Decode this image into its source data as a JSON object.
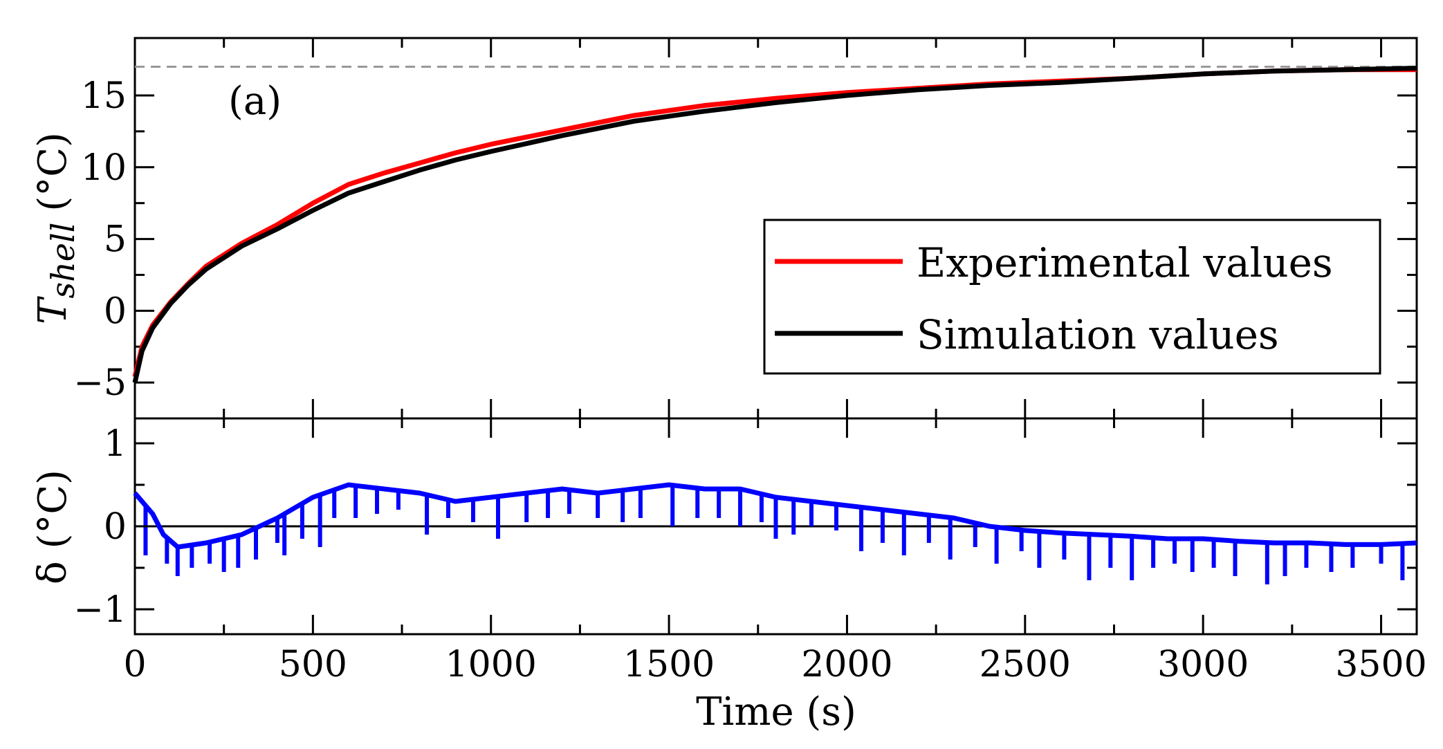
{
  "chart_data": [
    {
      "type": "line",
      "panel_label": "(a)",
      "xlabel": "",
      "ylabel_main": "T",
      "ylabel_sub": "shell",
      "ylabel_unit": "(°C)",
      "xlim": [
        0,
        3600
      ],
      "ylim": [
        -7.5,
        19
      ],
      "yticks": [
        -5,
        0,
        5,
        10,
        15
      ],
      "ytick_labels": [
        "−5",
        "0",
        "5",
        "10",
        "15"
      ],
      "reference_line": {
        "y": 17,
        "style": "dashed",
        "color": "#999999"
      },
      "legend": {
        "placement": "center-right"
      },
      "series": [
        {
          "name": "Experimental values",
          "color": "#ff0000",
          "x": [
            0,
            20,
            50,
            100,
            150,
            200,
            300,
            400,
            500,
            600,
            700,
            800,
            900,
            1000,
            1200,
            1400,
            1600,
            1800,
            2000,
            2200,
            2400,
            2600,
            2800,
            3000,
            3200,
            3400,
            3600
          ],
          "y": [
            -4.6,
            -2.5,
            -1.0,
            0.6,
            1.9,
            3.1,
            4.7,
            6.0,
            7.5,
            8.8,
            9.6,
            10.3,
            11.0,
            11.6,
            12.6,
            13.6,
            14.3,
            14.8,
            15.2,
            15.5,
            15.8,
            16.0,
            16.2,
            16.5,
            16.7,
            16.8,
            16.8
          ]
        },
        {
          "name": "Simulation values",
          "color": "#000000",
          "x": [
            0,
            20,
            50,
            100,
            150,
            200,
            300,
            400,
            500,
            600,
            700,
            800,
            900,
            1000,
            1200,
            1400,
            1600,
            1800,
            2000,
            2200,
            2400,
            2600,
            2800,
            3000,
            3200,
            3400,
            3600
          ],
          "y": [
            -5.0,
            -2.8,
            -1.2,
            0.5,
            1.8,
            2.9,
            4.5,
            5.7,
            7.0,
            8.2,
            9.0,
            9.8,
            10.5,
            11.1,
            12.2,
            13.2,
            13.9,
            14.5,
            15.0,
            15.4,
            15.7,
            15.9,
            16.2,
            16.5,
            16.7,
            16.8,
            16.9
          ]
        }
      ]
    },
    {
      "type": "line",
      "xlabel": "Time (s)",
      "ylabel": "δ (°C)",
      "xlim": [
        0,
        3600
      ],
      "ylim": [
        -1.3,
        1.3
      ],
      "yticks": [
        -1,
        0,
        1
      ],
      "ytick_labels": [
        "−1",
        "0",
        "1"
      ],
      "xticks": [
        0,
        500,
        1000,
        1500,
        2000,
        2500,
        3000,
        3500
      ],
      "xtick_labels": [
        "0",
        "500",
        "1000",
        "1500",
        "2000",
        "2500",
        "3000",
        "3500"
      ],
      "zero_line": {
        "y": 0,
        "color": "#000000"
      },
      "series": [
        {
          "name": "δ",
          "color": "#0000ff",
          "x": [
            0,
            20,
            50,
            80,
            120,
            200,
            300,
            400,
            500,
            600,
            700,
            800,
            900,
            1000,
            1100,
            1200,
            1300,
            1400,
            1500,
            1600,
            1700,
            1800,
            1900,
            2000,
            2100,
            2200,
            2300,
            2400,
            2500,
            2600,
            2700,
            2800,
            2900,
            3000,
            3100,
            3200,
            3300,
            3400,
            3500,
            3600
          ],
          "y": [
            0.4,
            0.3,
            0.15,
            -0.1,
            -0.25,
            -0.2,
            -0.1,
            0.1,
            0.35,
            0.5,
            0.45,
            0.4,
            0.3,
            0.35,
            0.4,
            0.45,
            0.4,
            0.45,
            0.5,
            0.45,
            0.45,
            0.35,
            0.3,
            0.25,
            0.2,
            0.15,
            0.1,
            0.0,
            -0.05,
            -0.08,
            -0.1,
            -0.12,
            -0.15,
            -0.15,
            -0.18,
            -0.2,
            -0.2,
            -0.22,
            -0.22,
            -0.2
          ]
        }
      ],
      "dips": [
        {
          "x": 30,
          "y": -0.35
        },
        {
          "x": 90,
          "y": -0.45
        },
        {
          "x": 120,
          "y": -0.6
        },
        {
          "x": 160,
          "y": -0.5
        },
        {
          "x": 210,
          "y": -0.45
        },
        {
          "x": 250,
          "y": -0.55
        },
        {
          "x": 290,
          "y": -0.5
        },
        {
          "x": 340,
          "y": -0.4
        },
        {
          "x": 400,
          "y": -0.2
        },
        {
          "x": 420,
          "y": -0.35
        },
        {
          "x": 470,
          "y": -0.15
        },
        {
          "x": 520,
          "y": -0.25
        },
        {
          "x": 560,
          "y": 0.1
        },
        {
          "x": 620,
          "y": 0.1
        },
        {
          "x": 680,
          "y": 0.15
        },
        {
          "x": 740,
          "y": 0.2
        },
        {
          "x": 820,
          "y": -0.1
        },
        {
          "x": 880,
          "y": 0.1
        },
        {
          "x": 950,
          "y": 0.05
        },
        {
          "x": 1020,
          "y": -0.15
        },
        {
          "x": 1100,
          "y": 0.05
        },
        {
          "x": 1160,
          "y": 0.1
        },
        {
          "x": 1220,
          "y": 0.15
        },
        {
          "x": 1300,
          "y": 0.1
        },
        {
          "x": 1370,
          "y": 0.05
        },
        {
          "x": 1420,
          "y": 0.1
        },
        {
          "x": 1510,
          "y": 0.0
        },
        {
          "x": 1580,
          "y": 0.1
        },
        {
          "x": 1640,
          "y": 0.1
        },
        {
          "x": 1700,
          "y": 0.0
        },
        {
          "x": 1760,
          "y": 0.05
        },
        {
          "x": 1800,
          "y": -0.15
        },
        {
          "x": 1850,
          "y": -0.1
        },
        {
          "x": 1900,
          "y": 0.0
        },
        {
          "x": 1970,
          "y": -0.05
        },
        {
          "x": 2040,
          "y": -0.3
        },
        {
          "x": 2100,
          "y": -0.2
        },
        {
          "x": 2160,
          "y": -0.35
        },
        {
          "x": 2230,
          "y": -0.2
        },
        {
          "x": 2290,
          "y": -0.4
        },
        {
          "x": 2360,
          "y": -0.25
        },
        {
          "x": 2420,
          "y": -0.45
        },
        {
          "x": 2490,
          "y": -0.3
        },
        {
          "x": 2540,
          "y": -0.5
        },
        {
          "x": 2610,
          "y": -0.4
        },
        {
          "x": 2680,
          "y": -0.65
        },
        {
          "x": 2740,
          "y": -0.5
        },
        {
          "x": 2800,
          "y": -0.65
        },
        {
          "x": 2860,
          "y": -0.5
        },
        {
          "x": 2920,
          "y": -0.45
        },
        {
          "x": 2970,
          "y": -0.55
        },
        {
          "x": 3030,
          "y": -0.5
        },
        {
          "x": 3090,
          "y": -0.6
        },
        {
          "x": 3180,
          "y": -0.7
        },
        {
          "x": 3230,
          "y": -0.6
        },
        {
          "x": 3290,
          "y": -0.5
        },
        {
          "x": 3360,
          "y": -0.55
        },
        {
          "x": 3420,
          "y": -0.5
        },
        {
          "x": 3500,
          "y": -0.45
        },
        {
          "x": 3560,
          "y": -0.65
        }
      ]
    }
  ]
}
